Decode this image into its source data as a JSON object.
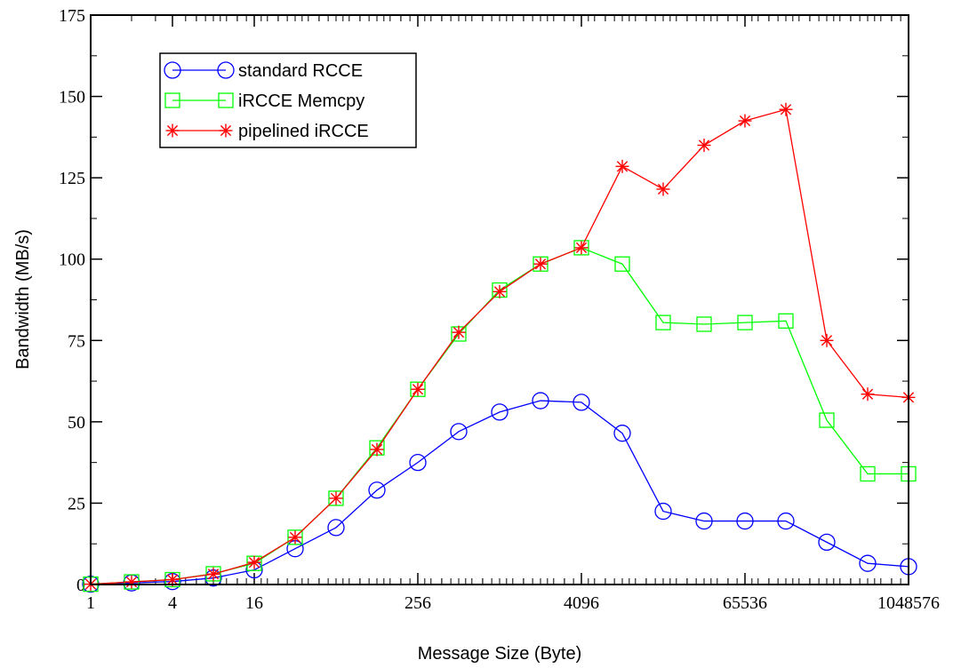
{
  "chart_data": {
    "type": "line",
    "title": "",
    "xlabel": "Message Size (Byte)",
    "ylabel": "Bandwidth (MB/s)",
    "x_scale": "log2",
    "xlim": [
      1,
      1048576
    ],
    "ylim": [
      0,
      175
    ],
    "x_ticks": [
      1,
      4,
      16,
      256,
      4096,
      65536,
      1048576
    ],
    "x_tick_labels": [
      "1",
      "4",
      "16",
      "256",
      "4096",
      "65536",
      "1048576"
    ],
    "y_ticks": [
      0,
      25,
      50,
      75,
      100,
      125,
      150,
      175
    ],
    "y_tick_labels": [
      "0",
      "25",
      "50",
      "75",
      "100",
      "125",
      "150",
      "175"
    ],
    "grid": false,
    "legend_position": "top-left",
    "x": [
      1,
      2,
      4,
      8,
      16,
      32,
      64,
      128,
      256,
      512,
      1024,
      2048,
      4096,
      8192,
      16384,
      32768,
      65536,
      131072,
      262144,
      524288,
      1048576
    ],
    "series": [
      {
        "name": "standard RCCE",
        "color": "#0000ff",
        "marker": "circle",
        "values": [
          0.1,
          0.5,
          0.9,
          2.0,
          4.5,
          11.0,
          17.5,
          29.0,
          37.5,
          47.0,
          53.0,
          56.5,
          56.0,
          46.5,
          22.5,
          19.5,
          19.5,
          19.5,
          13.0,
          6.5,
          5.5
        ]
      },
      {
        "name": "iRCCE Memcpy",
        "color": "#00ff00",
        "marker": "square",
        "values": [
          0.1,
          0.8,
          1.5,
          3.3,
          6.5,
          14.5,
          26.5,
          42.0,
          60.0,
          77.0,
          90.5,
          98.5,
          103.5,
          98.5,
          80.5,
          80.0,
          80.5,
          81.0,
          50.5,
          34.0,
          34.0
        ]
      },
      {
        "name": "pipelined iRCCE",
        "color": "#ff0000",
        "marker": "asterisk",
        "values": [
          0.1,
          0.8,
          1.5,
          3.2,
          6.8,
          14.5,
          26.5,
          41.5,
          60.0,
          77.5,
          90.0,
          98.5,
          103.5,
          128.5,
          121.5,
          135.0,
          142.5,
          146.0,
          75.0,
          58.5,
          57.5
        ]
      }
    ]
  }
}
